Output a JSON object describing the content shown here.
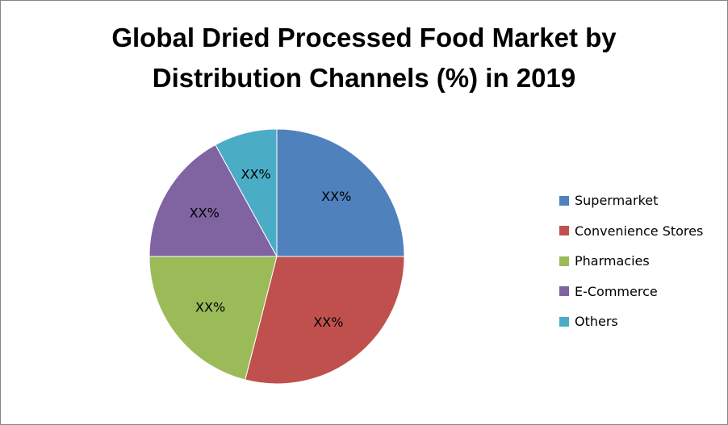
{
  "chart_data": {
    "type": "pie",
    "title_lines": [
      "Global Dried Processed Food Market by",
      "Distribution Channels (%) in 2019"
    ],
    "categories": [
      "Supermarket",
      "Convenience Stores",
      "Pharmacies",
      "E-Commerce",
      "Others"
    ],
    "values": [
      25,
      29,
      21,
      17,
      8
    ],
    "labels": [
      "XX%",
      "XX%",
      "XX%",
      "XX%",
      "XX%"
    ],
    "colors": [
      "#4f81bd",
      "#c0504d",
      "#9bbb59",
      "#8064a2",
      "#4bacc6"
    ],
    "legend_position": "right"
  }
}
